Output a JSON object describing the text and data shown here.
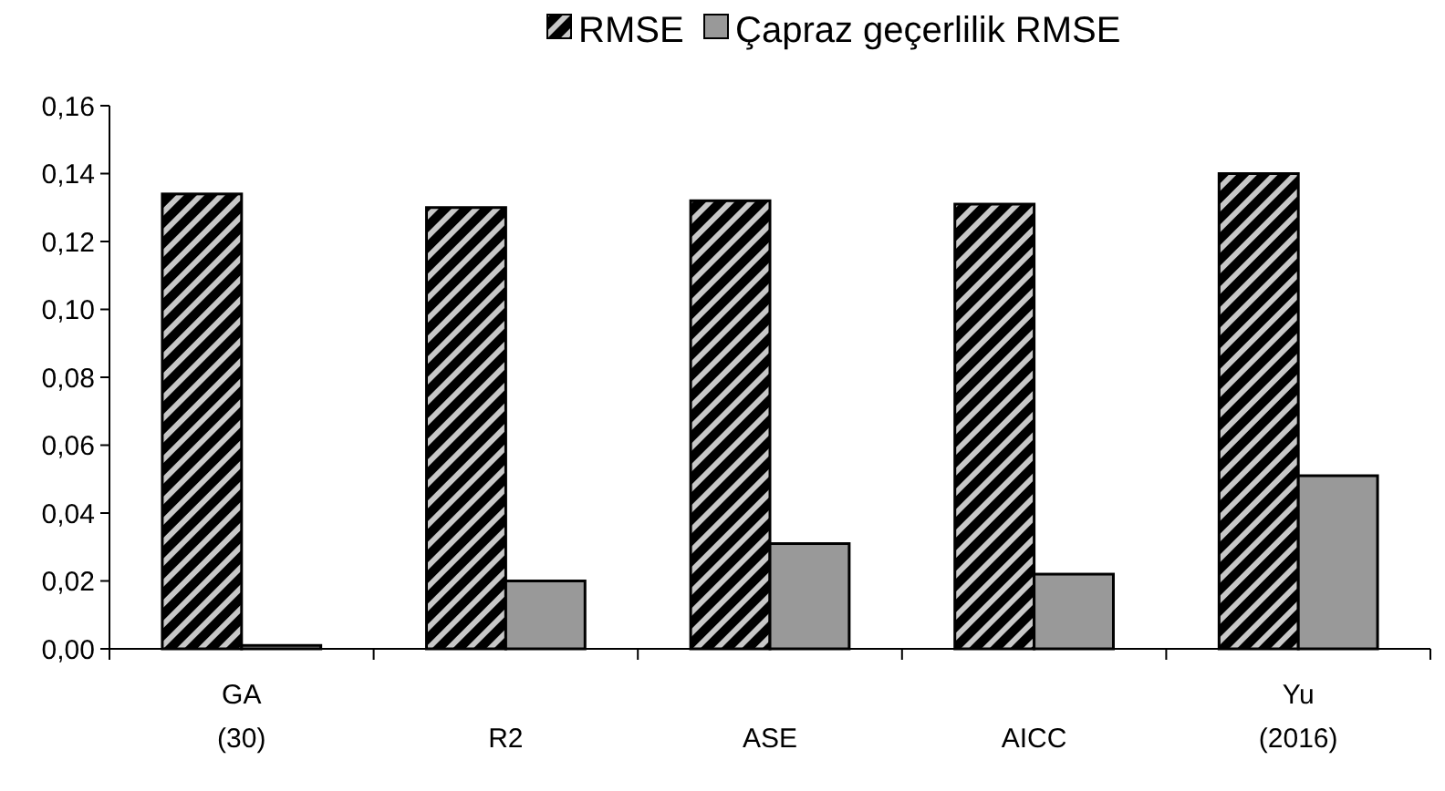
{
  "chart_data": {
    "type": "bar",
    "categories": [
      "GA\n(30)",
      "R2",
      "ASE",
      "AICC",
      "Yu\n(2016)"
    ],
    "series": [
      {
        "name": "RMSE",
        "color": "#000000",
        "values": [
          0.134,
          0.13,
          0.132,
          0.131,
          0.14
        ]
      },
      {
        "name": "Çapraz geçerlilik RMSE",
        "color": "#999999",
        "values": [
          0.001,
          0.02,
          0.031,
          0.022,
          0.051
        ]
      }
    ],
    "ylim": [
      0,
      0.16
    ],
    "yticks": [
      {
        "value": 0,
        "label": "0,00"
      },
      {
        "value": 0.02,
        "label": "0,02"
      },
      {
        "value": 0.04,
        "label": "0,04"
      },
      {
        "value": 0.06,
        "label": "0,06"
      },
      {
        "value": 0.08,
        "label": "0,08"
      },
      {
        "value": 0.1,
        "label": "0,10"
      },
      {
        "value": 0.12,
        "label": "0,12"
      },
      {
        "value": 0.14,
        "label": "0,14"
      },
      {
        "value": 0.16,
        "label": "0,16"
      }
    ],
    "legend": "top",
    "grid": false
  }
}
